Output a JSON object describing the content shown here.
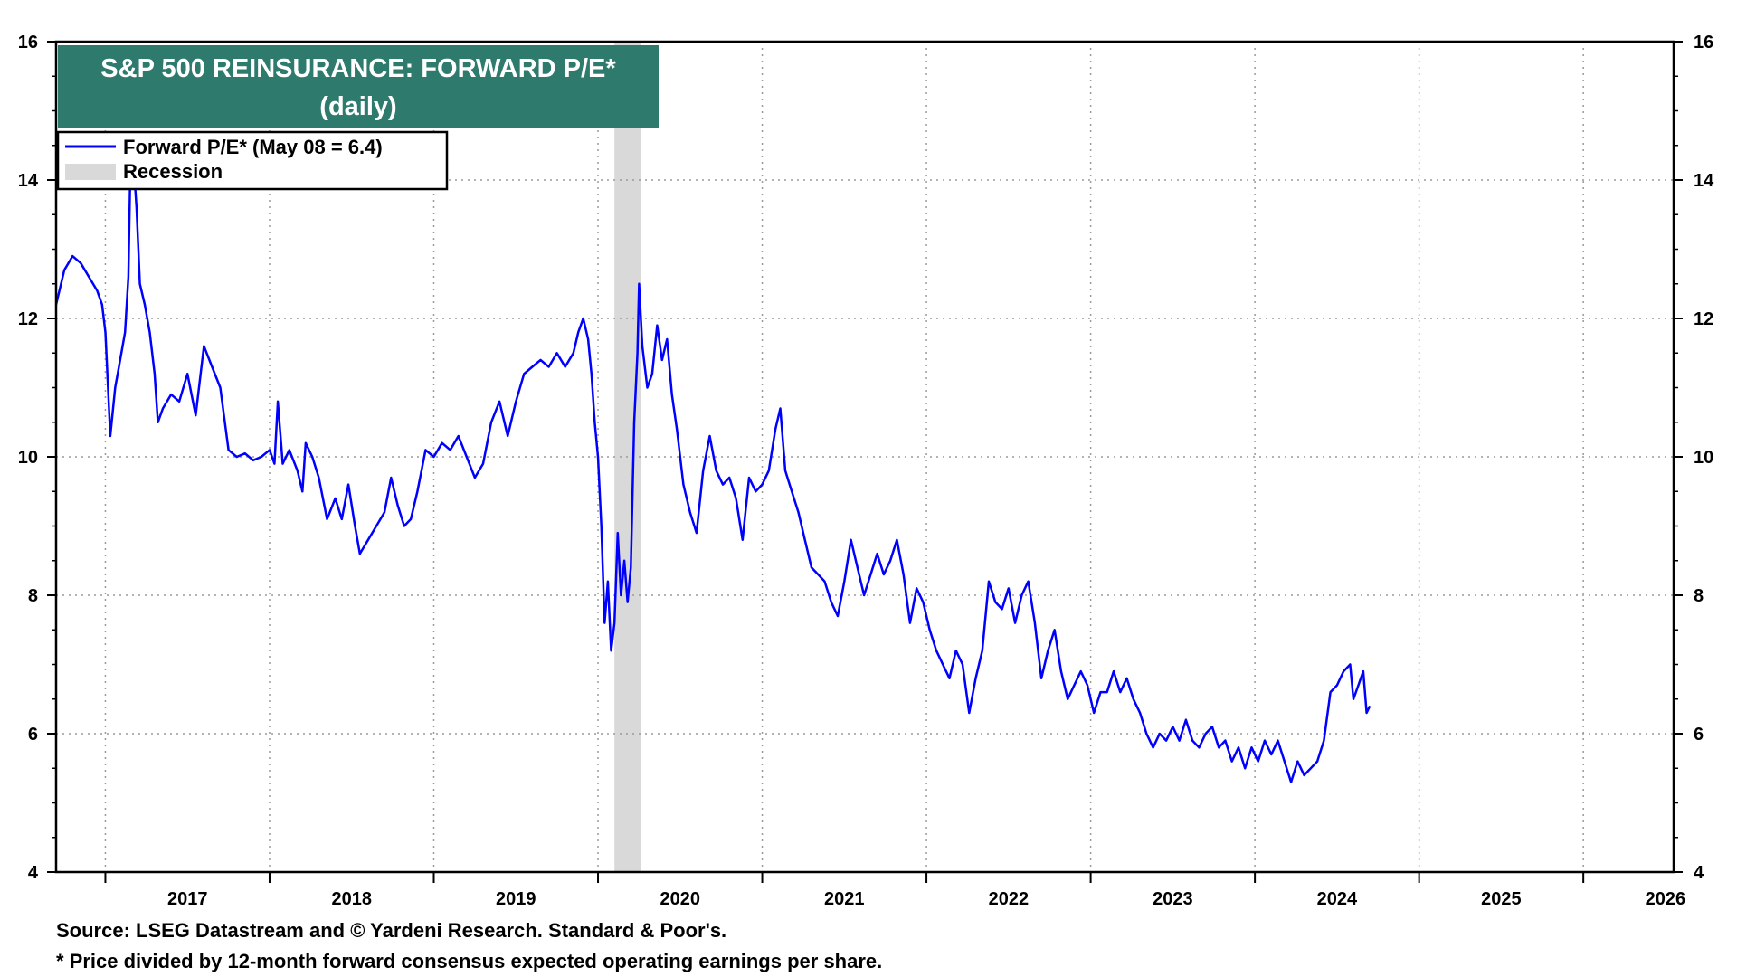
{
  "chart_data": {
    "type": "line",
    "title": "S&P 500 REINSURANCE: FORWARD P/E*",
    "subtitle": "(daily)",
    "ylim": [
      4,
      16
    ],
    "yticks": [
      4,
      6,
      8,
      10,
      12,
      14,
      16
    ],
    "yticks_right": [
      4,
      6,
      8,
      10,
      12,
      14,
      16
    ],
    "xlim": [
      2016.7,
      2026.55
    ],
    "xticks": [
      "2017",
      "2018",
      "2019",
      "2020",
      "2021",
      "2022",
      "2023",
      "2024",
      "2025",
      "2026"
    ],
    "grid": true,
    "legend": {
      "placement": "top-left",
      "items": [
        {
          "label": "Forward P/E* (May 08 = 6.4)",
          "color": "#0000ff",
          "kind": "line"
        },
        {
          "label": "Recession",
          "color": "#d9d9d9",
          "kind": "patch"
        }
      ]
    },
    "recession": {
      "start": 2020.1,
      "end": 2020.26
    },
    "series": [
      {
        "name": "Forward P/E*",
        "color": "#0000ff",
        "points": [
          [
            2016.7,
            12.2
          ],
          [
            2016.75,
            12.7
          ],
          [
            2016.8,
            12.9
          ],
          [
            2016.85,
            12.8
          ],
          [
            2016.9,
            12.6
          ],
          [
            2016.95,
            12.4
          ],
          [
            2016.98,
            12.2
          ],
          [
            2017.0,
            11.8
          ],
          [
            2017.03,
            10.3
          ],
          [
            2017.06,
            11.0
          ],
          [
            2017.09,
            11.4
          ],
          [
            2017.12,
            11.8
          ],
          [
            2017.14,
            12.6
          ],
          [
            2017.15,
            13.9
          ],
          [
            2017.17,
            14.3
          ],
          [
            2017.19,
            13.6
          ],
          [
            2017.21,
            12.5
          ],
          [
            2017.24,
            12.2
          ],
          [
            2017.27,
            11.8
          ],
          [
            2017.3,
            11.2
          ],
          [
            2017.32,
            10.5
          ],
          [
            2017.35,
            10.7
          ],
          [
            2017.4,
            10.9
          ],
          [
            2017.45,
            10.8
          ],
          [
            2017.5,
            11.2
          ],
          [
            2017.55,
            10.6
          ],
          [
            2017.6,
            11.6
          ],
          [
            2017.65,
            11.3
          ],
          [
            2017.7,
            11.0
          ],
          [
            2017.75,
            10.1
          ],
          [
            2017.8,
            10.0
          ],
          [
            2017.85,
            10.05
          ],
          [
            2017.9,
            9.95
          ],
          [
            2017.95,
            10.0
          ],
          [
            2018.0,
            10.1
          ],
          [
            2018.03,
            9.9
          ],
          [
            2018.05,
            10.8
          ],
          [
            2018.08,
            9.9
          ],
          [
            2018.12,
            10.1
          ],
          [
            2018.17,
            9.8
          ],
          [
            2018.2,
            9.5
          ],
          [
            2018.22,
            10.2
          ],
          [
            2018.26,
            10.0
          ],
          [
            2018.3,
            9.7
          ],
          [
            2018.35,
            9.1
          ],
          [
            2018.4,
            9.4
          ],
          [
            2018.44,
            9.1
          ],
          [
            2018.48,
            9.6
          ],
          [
            2018.52,
            9.0
          ],
          [
            2018.55,
            8.6
          ],
          [
            2018.6,
            8.8
          ],
          [
            2018.65,
            9.0
          ],
          [
            2018.7,
            9.2
          ],
          [
            2018.74,
            9.7
          ],
          [
            2018.78,
            9.3
          ],
          [
            2018.82,
            9.0
          ],
          [
            2018.86,
            9.1
          ],
          [
            2018.9,
            9.5
          ],
          [
            2018.95,
            10.1
          ],
          [
            2019.0,
            10.0
          ],
          [
            2019.05,
            10.2
          ],
          [
            2019.1,
            10.1
          ],
          [
            2019.15,
            10.3
          ],
          [
            2019.2,
            10.0
          ],
          [
            2019.25,
            9.7
          ],
          [
            2019.3,
            9.9
          ],
          [
            2019.35,
            10.5
          ],
          [
            2019.4,
            10.8
          ],
          [
            2019.45,
            10.3
          ],
          [
            2019.5,
            10.8
          ],
          [
            2019.55,
            11.2
          ],
          [
            2019.6,
            11.3
          ],
          [
            2019.65,
            11.4
          ],
          [
            2019.7,
            11.3
          ],
          [
            2019.75,
            11.5
          ],
          [
            2019.8,
            11.3
          ],
          [
            2019.85,
            11.5
          ],
          [
            2019.88,
            11.8
          ],
          [
            2019.91,
            12.0
          ],
          [
            2019.94,
            11.7
          ],
          [
            2019.96,
            11.2
          ],
          [
            2019.98,
            10.5
          ],
          [
            2020.0,
            10.0
          ],
          [
            2020.02,
            9.0
          ],
          [
            2020.04,
            7.6
          ],
          [
            2020.06,
            8.2
          ],
          [
            2020.08,
            7.2
          ],
          [
            2020.1,
            7.6
          ],
          [
            2020.12,
            8.9
          ],
          [
            2020.14,
            8.0
          ],
          [
            2020.16,
            8.5
          ],
          [
            2020.18,
            7.9
          ],
          [
            2020.2,
            8.4
          ],
          [
            2020.22,
            10.5
          ],
          [
            2020.24,
            11.5
          ],
          [
            2020.25,
            12.5
          ],
          [
            2020.27,
            11.6
          ],
          [
            2020.3,
            11.0
          ],
          [
            2020.33,
            11.2
          ],
          [
            2020.36,
            11.9
          ],
          [
            2020.39,
            11.4
          ],
          [
            2020.42,
            11.7
          ],
          [
            2020.45,
            10.9
          ],
          [
            2020.48,
            10.4
          ],
          [
            2020.52,
            9.6
          ],
          [
            2020.56,
            9.2
          ],
          [
            2020.6,
            8.9
          ],
          [
            2020.64,
            9.8
          ],
          [
            2020.68,
            10.3
          ],
          [
            2020.72,
            9.8
          ],
          [
            2020.76,
            9.6
          ],
          [
            2020.8,
            9.7
          ],
          [
            2020.84,
            9.4
          ],
          [
            2020.88,
            8.8
          ],
          [
            2020.92,
            9.7
          ],
          [
            2020.96,
            9.5
          ],
          [
            2021.0,
            9.6
          ],
          [
            2021.04,
            9.8
          ],
          [
            2021.08,
            10.4
          ],
          [
            2021.11,
            10.7
          ],
          [
            2021.14,
            9.8
          ],
          [
            2021.18,
            9.5
          ],
          [
            2021.22,
            9.2
          ],
          [
            2021.26,
            8.8
          ],
          [
            2021.3,
            8.4
          ],
          [
            2021.34,
            8.3
          ],
          [
            2021.38,
            8.2
          ],
          [
            2021.42,
            7.9
          ],
          [
            2021.46,
            7.7
          ],
          [
            2021.5,
            8.2
          ],
          [
            2021.54,
            8.8
          ],
          [
            2021.58,
            8.4
          ],
          [
            2021.62,
            8.0
          ],
          [
            2021.66,
            8.3
          ],
          [
            2021.7,
            8.6
          ],
          [
            2021.74,
            8.3
          ],
          [
            2021.78,
            8.5
          ],
          [
            2021.82,
            8.8
          ],
          [
            2021.86,
            8.3
          ],
          [
            2021.9,
            7.6
          ],
          [
            2021.94,
            8.1
          ],
          [
            2021.98,
            7.9
          ],
          [
            2022.02,
            7.5
          ],
          [
            2022.06,
            7.2
          ],
          [
            2022.1,
            7.0
          ],
          [
            2022.14,
            6.8
          ],
          [
            2022.18,
            7.2
          ],
          [
            2022.22,
            7.0
          ],
          [
            2022.26,
            6.3
          ],
          [
            2022.3,
            6.8
          ],
          [
            2022.34,
            7.2
          ],
          [
            2022.38,
            8.2
          ],
          [
            2022.42,
            7.9
          ],
          [
            2022.46,
            7.8
          ],
          [
            2022.5,
            8.1
          ],
          [
            2022.54,
            7.6
          ],
          [
            2022.58,
            8.0
          ],
          [
            2022.62,
            8.2
          ],
          [
            2022.66,
            7.6
          ],
          [
            2022.7,
            6.8
          ],
          [
            2022.74,
            7.2
          ],
          [
            2022.78,
            7.5
          ],
          [
            2022.82,
            6.9
          ],
          [
            2022.86,
            6.5
          ],
          [
            2022.9,
            6.7
          ],
          [
            2022.94,
            6.9
          ],
          [
            2022.98,
            6.7
          ],
          [
            2023.02,
            6.3
          ],
          [
            2023.06,
            6.6
          ],
          [
            2023.1,
            6.6
          ],
          [
            2023.14,
            6.9
          ],
          [
            2023.18,
            6.6
          ],
          [
            2023.22,
            6.8
          ],
          [
            2023.26,
            6.5
          ],
          [
            2023.3,
            6.3
          ],
          [
            2023.34,
            6.0
          ],
          [
            2023.38,
            5.8
          ],
          [
            2023.42,
            6.0
          ],
          [
            2023.46,
            5.9
          ],
          [
            2023.5,
            6.1
          ],
          [
            2023.54,
            5.9
          ],
          [
            2023.58,
            6.2
          ],
          [
            2023.62,
            5.9
          ],
          [
            2023.66,
            5.8
          ],
          [
            2023.7,
            6.0
          ],
          [
            2023.74,
            6.1
          ],
          [
            2023.78,
            5.8
          ],
          [
            2023.82,
            5.9
          ],
          [
            2023.86,
            5.6
          ],
          [
            2023.9,
            5.8
          ],
          [
            2023.94,
            5.5
          ],
          [
            2023.98,
            5.8
          ],
          [
            2024.02,
            5.6
          ],
          [
            2024.06,
            5.9
          ],
          [
            2024.1,
            5.7
          ],
          [
            2024.14,
            5.9
          ],
          [
            2024.18,
            5.6
          ],
          [
            2024.22,
            5.3
          ],
          [
            2024.26,
            5.6
          ],
          [
            2024.3,
            5.4
          ],
          [
            2024.34,
            5.5
          ],
          [
            2024.38,
            5.6
          ],
          [
            2024.42,
            5.9
          ],
          [
            2024.46,
            6.6
          ],
          [
            2024.5,
            6.7
          ],
          [
            2024.54,
            6.9
          ],
          [
            2024.58,
            7.0
          ],
          [
            2024.6,
            6.5
          ],
          [
            2024.63,
            6.7
          ],
          [
            2024.66,
            6.9
          ],
          [
            2024.68,
            6.3
          ],
          [
            2024.7,
            6.4
          ]
        ]
      }
    ]
  },
  "footer": {
    "source": "Source: LSEG Datastream and © Yardeni Research. Standard & Poor's.",
    "note": "* Price divided by 12-month forward consensus expected operating earnings per share."
  }
}
